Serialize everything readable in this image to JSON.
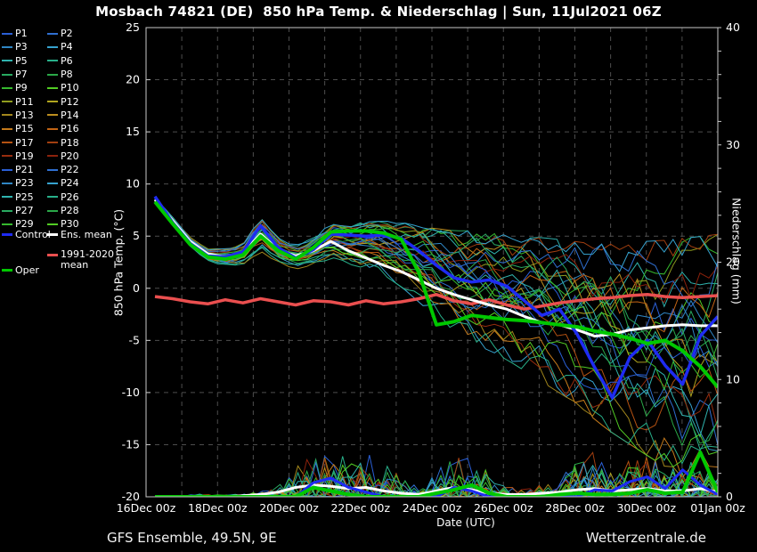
{
  "title": "Mosbach 74821 (DE)  850 hPa Temp. & Niederschlag | Sun, 11Jul2021 06Z",
  "footer": {
    "left": "GFS Ensemble, 49.5N, 9E",
    "right": "Wetterzentrale.de"
  },
  "colors": {
    "background": "#000000",
    "text": "#ffffff",
    "grid": "#4d4d4d",
    "axis_box": "#c8c8c8"
  },
  "legend": {
    "control": {
      "label": "Control",
      "color": "#1e2bf2"
    },
    "ens_mean": {
      "label": "Ens. mean",
      "color": "#ffffff"
    },
    "clim": {
      "label_line1": "1991-2020",
      "label_line2": "mean",
      "color": "#ea4f4f"
    },
    "oper": {
      "label": "Oper",
      "color": "#00c800"
    }
  },
  "chart_data": {
    "type": "line",
    "title": "Mosbach 74821 (DE)  850 hPa Temp. & Niederschlag | Sun, 11Jul2021 06Z",
    "xlabel": "Date (UTC)",
    "ylabel_left": "850 hPa Temp. (°C)",
    "ylabel_right": "Niederschlag (mm)",
    "x_tick_labels": [
      "16Dec 00z",
      "18Dec 00z",
      "20Dec 00z",
      "22Dec 00z",
      "24Dec 00z",
      "26Dec 00z",
      "28Dec 00z",
      "30Dec 00z",
      "01Jan 00z"
    ],
    "x_range_days": [
      0,
      16
    ],
    "time_step_days": 0.5,
    "ylim_left": [
      -20,
      25
    ],
    "yticks_left": [
      25,
      20,
      15,
      10,
      5,
      0,
      -5,
      -10,
      -15,
      -20
    ],
    "ylim_right": [
      0,
      40
    ],
    "yticks_right": [
      0,
      10,
      20,
      30,
      40
    ],
    "grid": "dashed; vertical every 1 day, horizontal every 5 degC",
    "legend_position": "top-left",
    "series": {
      "ens_mean_temp": [
        8.5,
        6.5,
        4.5,
        3.3,
        3.0,
        3.4,
        5.2,
        3.7,
        3.1,
        3.6,
        4.5,
        3.6,
        2.9,
        2.2,
        1.6,
        0.8,
        0.0,
        -0.6,
        -1.1,
        -1.6,
        -2.0,
        -2.7,
        -3.3,
        -3.5,
        -4.0,
        -4.6,
        -4.4,
        -4.0,
        -3.8,
        -3.6,
        -3.5,
        -3.6,
        -3.6
      ],
      "control_temp": [
        8.8,
        6.3,
        4.3,
        3.1,
        3.0,
        3.5,
        6.0,
        3.9,
        2.9,
        3.7,
        5.2,
        5.1,
        5.0,
        5.1,
        4.8,
        3.6,
        2.2,
        1.0,
        0.6,
        0.8,
        0.2,
        -1.2,
        -2.6,
        -2.0,
        -4.4,
        -7.6,
        -10.5,
        -6.6,
        -5.0,
        -7.4,
        -9.2,
        -4.6,
        -2.7
      ],
      "oper_temp": [
        8.3,
        6.2,
        4.2,
        3.0,
        2.8,
        3.2,
        5.0,
        3.6,
        2.8,
        3.9,
        5.4,
        5.5,
        5.5,
        5.3,
        4.7,
        1.5,
        -3.5,
        -3.2,
        -2.6,
        -2.8,
        -3.0,
        -3.1,
        -3.3,
        -3.5,
        -3.7,
        -4.1,
        -4.4,
        -4.8,
        -5.3,
        -5.0,
        -6.0,
        -7.5,
        -9.5
      ],
      "clim_mean_temp": [
        -0.8,
        -1.0,
        -1.3,
        -1.5,
        -1.1,
        -1.4,
        -1.0,
        -1.3,
        -1.6,
        -1.2,
        -1.3,
        -1.6,
        -1.2,
        -1.5,
        -1.3,
        -1.0,
        -0.6,
        -1.2,
        -1.5,
        -1.1,
        -1.6,
        -2.0,
        -1.7,
        -1.4,
        -1.2,
        -1.0,
        -0.9,
        -0.7,
        -0.6,
        -0.8,
        -0.9,
        -0.8,
        -0.7
      ],
      "spread_upper": [
        8.8,
        7.0,
        5.0,
        3.8,
        3.8,
        4.2,
        6.8,
        4.8,
        4.2,
        4.8,
        6.3,
        6.2,
        6.4,
        6.5,
        6.4,
        6.0,
        5.8,
        5.6,
        5.6,
        5.4,
        5.2,
        5.0,
        5.0,
        4.8,
        4.6,
        4.4,
        4.4,
        4.5,
        4.7,
        4.8,
        5.0,
        5.2,
        5.4
      ],
      "spread_lower": [
        8.2,
        6.0,
        4.0,
        2.6,
        2.2,
        2.4,
        3.8,
        2.6,
        2.0,
        2.4,
        3.0,
        2.6,
        2.2,
        1.6,
        0.6,
        -0.8,
        -2.2,
        -3.4,
        -4.4,
        -5.2,
        -6.0,
        -7.0,
        -8.0,
        -9.0,
        -10.0,
        -11.4,
        -12.6,
        -13.6,
        -14.6,
        -15.6,
        -16.6,
        -17.6,
        -18.6
      ],
      "ens_mean_precip": [
        0,
        0,
        0,
        0,
        0,
        0.1,
        0.2,
        0.4,
        0.8,
        1.0,
        0.9,
        0.7,
        0.8,
        0.5,
        0.3,
        0.2,
        0.5,
        0.8,
        0.6,
        0.3,
        0.2,
        0.2,
        0.3,
        0.4,
        0.6,
        0.7,
        0.5,
        0.6,
        0.7,
        0.5,
        0.5,
        0.7,
        0.4
      ],
      "control_precip": [
        0,
        0,
        0,
        0,
        0,
        0,
        0,
        0,
        0,
        1.2,
        1.6,
        0.8,
        0.4,
        0,
        0,
        0,
        0,
        0.8,
        0.5,
        0,
        0,
        0,
        0,
        0,
        0,
        0.6,
        0.5,
        1.3,
        1.7,
        0.7,
        2.3,
        1.0,
        0.2
      ],
      "oper_precip": [
        0,
        0,
        0,
        0,
        0,
        0,
        0,
        0,
        0,
        0.8,
        0.5,
        0.2,
        0,
        0,
        0,
        0,
        0.3,
        0.6,
        1.0,
        0.3,
        0,
        0,
        0,
        0.2,
        0.3,
        0.2,
        0.2,
        0.3,
        0.6,
        0.3,
        0.4,
        3.8,
        0.4
      ],
      "precip_envelope": [
        0,
        0,
        0.2,
        0.3,
        0.2,
        0.3,
        0.5,
        1.0,
        2.5,
        4.5,
        4.8,
        3.5,
        4.5,
        3.0,
        2.0,
        1.0,
        2.5,
        4.5,
        4.0,
        2.0,
        1.0,
        0.8,
        1.5,
        2.0,
        3.5,
        4.5,
        3.0,
        3.5,
        4.2,
        3.0,
        2.5,
        3.8,
        2.0
      ]
    },
    "members": [
      {
        "label": "P1",
        "color": "#2a5fd6",
        "seed": 20,
        "bias": 0.17
      },
      {
        "label": "P2",
        "color": "#2f6fd1",
        "seed": 33,
        "bias": -0.83
      },
      {
        "label": "P3",
        "color": "#2f86c4",
        "seed": 46,
        "bias": 0.33
      },
      {
        "label": "P4",
        "color": "#36a3cf",
        "seed": 59,
        "bias": -0.67
      },
      {
        "label": "P5",
        "color": "#2fb3ae",
        "seed": 72,
        "bias": 0.5
      },
      {
        "label": "P6",
        "color": "#28b08a",
        "seed": 85,
        "bias": -0.5
      },
      {
        "label": "P7",
        "color": "#28aa60",
        "seed": 98,
        "bias": 0.67
      },
      {
        "label": "P8",
        "color": "#2aa848",
        "seed": 111,
        "bias": -0.33
      },
      {
        "label": "P9",
        "color": "#36b92e",
        "seed": 124,
        "bias": 0.83
      },
      {
        "label": "P10",
        "color": "#52cc24",
        "seed": 137,
        "bias": -0.17
      },
      {
        "label": "P11",
        "color": "#8f9c1e",
        "seed": 150,
        "bias": 1.0
      },
      {
        "label": "P12",
        "color": "#b1a51f",
        "seed": 163,
        "bias": 0.0
      },
      {
        "label": "P13",
        "color": "#a3871c",
        "seed": 176,
        "bias": -1.0
      },
      {
        "label": "P14",
        "color": "#bd8e1f",
        "seed": 189,
        "bias": 0.17
      },
      {
        "label": "P15",
        "color": "#c57a1b",
        "seed": 202,
        "bias": -0.83
      },
      {
        "label": "P16",
        "color": "#c26414",
        "seed": 215,
        "bias": 0.33
      },
      {
        "label": "P17",
        "color": "#b55212",
        "seed": 228,
        "bias": -0.67
      },
      {
        "label": "P18",
        "color": "#a23f10",
        "seed": 241,
        "bias": 0.5
      },
      {
        "label": "P19",
        "color": "#972d0e",
        "seed": 254,
        "bias": -0.5
      },
      {
        "label": "P20",
        "color": "#8c220c",
        "seed": 267,
        "bias": 0.67
      },
      {
        "label": "P21",
        "color": "#2a5fd6",
        "seed": 280,
        "bias": -0.33
      },
      {
        "label": "P22",
        "color": "#2f6fd1",
        "seed": 293,
        "bias": 0.83
      },
      {
        "label": "P23",
        "color": "#2f86c4",
        "seed": 306,
        "bias": -0.17
      },
      {
        "label": "P24",
        "color": "#36a3cf",
        "seed": 319,
        "bias": 1.0
      },
      {
        "label": "P25",
        "color": "#2fb3ae",
        "seed": 332,
        "bias": 0.0
      },
      {
        "label": "P26",
        "color": "#28b08a",
        "seed": 345,
        "bias": -1.0
      },
      {
        "label": "P27",
        "color": "#28aa60",
        "seed": 358,
        "bias": 0.17
      },
      {
        "label": "P28",
        "color": "#2aa848",
        "seed": 371,
        "bias": -0.83
      },
      {
        "label": "P29",
        "color": "#36b92e",
        "seed": 384,
        "bias": 0.33
      },
      {
        "label": "P30",
        "color": "#52cc24",
        "seed": 397,
        "bias": -0.67
      }
    ]
  }
}
